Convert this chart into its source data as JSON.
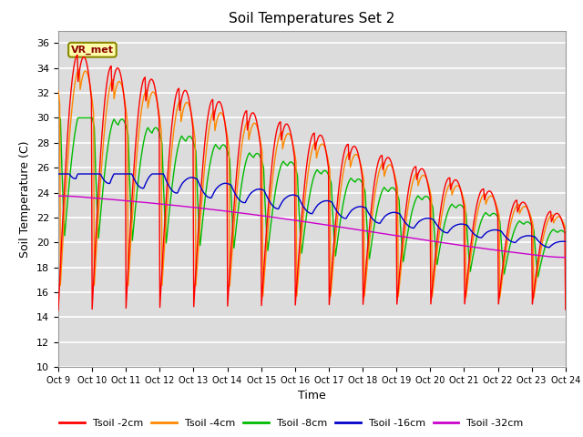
{
  "title": "Soil Temperatures Set 2",
  "xlabel": "Time",
  "ylabel": "Soil Temperature (C)",
  "ylim": [
    10,
    37
  ],
  "annotation": "VR_met",
  "colors": {
    "2cm": "#ff0000",
    "4cm": "#ff8800",
    "8cm": "#00bb00",
    "16cm": "#0000cc",
    "32cm": "#cc00cc"
  },
  "legend_labels": [
    "Tsoil -2cm",
    "Tsoil -4cm",
    "Tsoil -8cm",
    "Tsoil -16cm",
    "Tsoil -32cm"
  ],
  "xtick_labels": [
    "Oct 9",
    "Oct 10",
    "Oct 11",
    "Oct 12",
    "Oct 13",
    "Oct 14",
    "Oct 15",
    "Oct 16",
    "Oct 17",
    "Oct 18",
    "Oct 19",
    "Oct 20",
    "Oct 21",
    "Oct 22",
    "Oct 23",
    "Oct 24"
  ],
  "ytick_values": [
    10,
    12,
    14,
    16,
    18,
    20,
    22,
    24,
    26,
    28,
    30,
    32,
    34,
    36
  ]
}
